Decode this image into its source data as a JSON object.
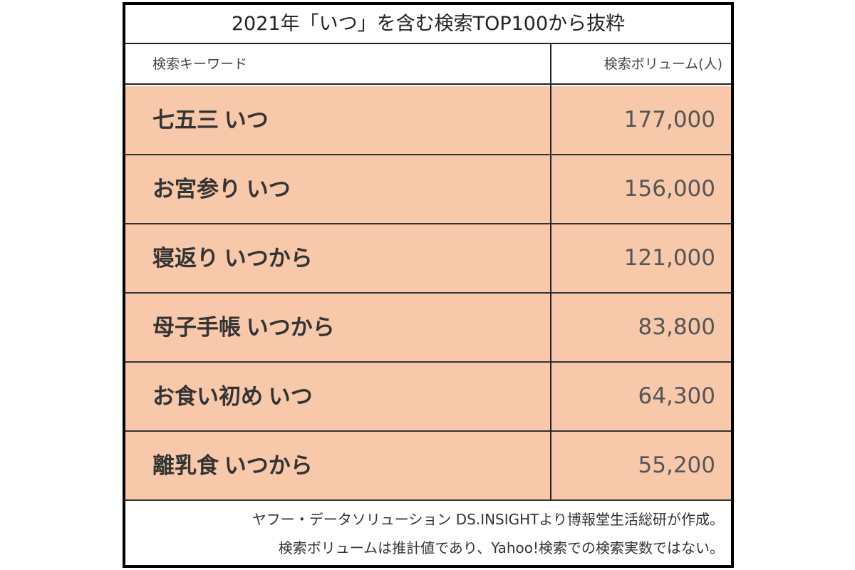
{
  "title": "2021年「いつ」を含む検索TOP100から抜粋",
  "table": {
    "header": [
      "検索キーワード",
      "検索ボリューム(人)"
    ],
    "rows": [
      [
        "七五三 いつ",
        "177,000"
      ],
      [
        "お宮参り いつ",
        "156,000"
      ],
      [
        "寝返り いつから",
        "121,000"
      ],
      [
        "母子手帳 いつから",
        "83,800"
      ],
      [
        "お食い初め いつ",
        "64,300"
      ],
      [
        "離乳食 いつから",
        "55,200"
      ]
    ]
  },
  "notes": [
    "ヤフー・データソリューション DS.INSIGHTより博報堂生活総研が作成。",
    "検索ボリュームは推計値であり、Yahoo!検索での検索実数ではない。"
  ]
}
